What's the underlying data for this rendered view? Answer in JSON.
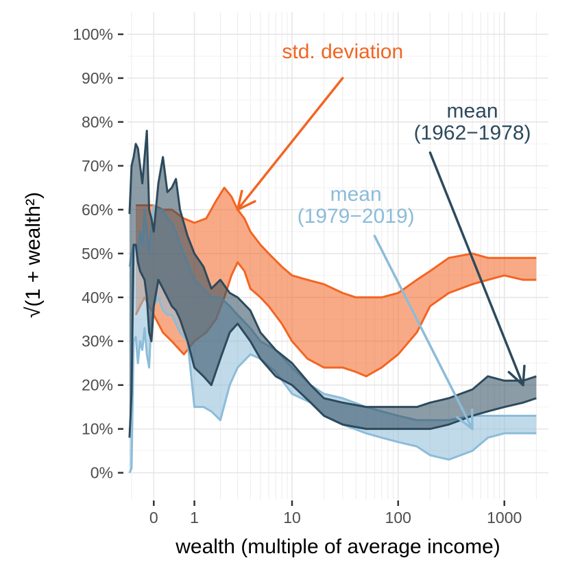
{
  "chart_data": {
    "type": "area",
    "title": "",
    "xlabel": "wealth (multiple of average income)",
    "ylabel": "√(1 + wealth²)",
    "x_scale": "asinh",
    "x_ticks": [
      0,
      1,
      10,
      100,
      1000
    ],
    "x_tick_labels": [
      "0",
      "1",
      "10",
      "100",
      "1000"
    ],
    "xlim": [
      -0.6,
      2600
    ],
    "y_ticks": [
      0,
      10,
      20,
      30,
      40,
      50,
      60,
      70,
      80,
      90,
      100
    ],
    "y_tick_labels": [
      "0%",
      "10%",
      "20%",
      "30%",
      "40%",
      "50%",
      "60%",
      "70%",
      "80%",
      "90%",
      "100%"
    ],
    "ylim": [
      -6,
      105
    ],
    "grid": true,
    "legend": "none",
    "series": [
      {
        "color": "#f26522",
        "x": [
          -0.4,
          -0.3,
          -0.2,
          -0.1,
          0.0,
          0.2,
          0.4,
          0.7,
          1.0,
          1.4,
          1.8,
          2.2,
          2.6,
          3.0,
          3.5,
          4.0,
          5.0,
          6.0,
          8.0,
          10,
          14,
          20,
          30,
          40,
          50,
          70,
          100,
          150,
          200,
          300,
          500,
          700,
          1000,
          1500,
          2000
        ],
        "lower": [
          36,
          38,
          40,
          38,
          36,
          32,
          30,
          27,
          30,
          32,
          35,
          40,
          45,
          48,
          46,
          42,
          40,
          38,
          34,
          30,
          26,
          24,
          24,
          23,
          22,
          24,
          27,
          32,
          38,
          41,
          43,
          44,
          45,
          44,
          44
        ],
        "upper": [
          61,
          61,
          61,
          61,
          61,
          60,
          60,
          58,
          57,
          58,
          62,
          65,
          63,
          60,
          58,
          55,
          52,
          50,
          47,
          45,
          44,
          43,
          41,
          40,
          40,
          40,
          41,
          44,
          46,
          49,
          50,
          49,
          49,
          49,
          49
        ]
      },
      {
        "color": "#8cbcd8",
        "x": [
          -0.55,
          -0.5,
          -0.45,
          -0.4,
          -0.35,
          -0.3,
          -0.25,
          -0.2,
          -0.15,
          -0.1,
          -0.05,
          0.0,
          0.1,
          0.2,
          0.3,
          0.4,
          0.5,
          0.6,
          0.8,
          1.0,
          1.3,
          1.6,
          2.0,
          2.5,
          3.0,
          4.0,
          5.0,
          7.0,
          10,
          15,
          20,
          30,
          50,
          70,
          100,
          150,
          200,
          300,
          500,
          700,
          1000,
          1500,
          2000
        ],
        "lower": [
          0,
          1,
          30,
          31,
          25,
          30,
          28,
          33,
          27,
          24,
          35,
          38,
          40,
          37,
          36,
          36,
          34,
          32,
          30,
          15,
          15,
          14,
          12,
          20,
          24,
          27,
          26,
          23,
          18,
          16,
          13,
          11,
          9,
          8,
          7,
          6,
          4,
          3,
          5,
          8,
          9,
          9,
          9
        ],
        "upper": [
          47,
          50,
          52,
          52,
          50,
          55,
          52,
          60,
          55,
          50,
          56,
          61,
          60,
          60,
          58,
          57,
          55,
          52,
          48,
          44,
          42,
          40,
          40,
          38,
          36,
          33,
          30,
          28,
          24,
          20,
          18,
          17,
          15,
          14,
          13,
          12,
          12,
          12,
          13,
          13,
          13,
          13,
          13
        ]
      },
      {
        "color": "#2d4a5c",
        "x": [
          -0.55,
          -0.5,
          -0.45,
          -0.4,
          -0.35,
          -0.3,
          -0.25,
          -0.2,
          -0.15,
          -0.1,
          -0.05,
          0.0,
          0.1,
          0.2,
          0.3,
          0.4,
          0.5,
          0.6,
          0.8,
          1.0,
          1.3,
          1.6,
          2.0,
          2.5,
          3.0,
          4.0,
          5.0,
          7.0,
          10,
          15,
          20,
          30,
          50,
          70,
          100,
          150,
          200,
          300,
          500,
          700,
          1000,
          1500,
          2000
        ],
        "lower": [
          8,
          18,
          52,
          52,
          48,
          46,
          45,
          44,
          40,
          32,
          30,
          38,
          44,
          42,
          40,
          38,
          37,
          35,
          30,
          24,
          22,
          20,
          26,
          32,
          34,
          30,
          26,
          22,
          20,
          16,
          13,
          11,
          10,
          10,
          10,
          10,
          10,
          11,
          13,
          14,
          15,
          16,
          17
        ],
        "upper": [
          59,
          70,
          72,
          75,
          74,
          70,
          66,
          72,
          78,
          60,
          58,
          55,
          66,
          72,
          64,
          65,
          67,
          60,
          54,
          50,
          47,
          42,
          44,
          41,
          40,
          37,
          32,
          28,
          25,
          20,
          17,
          16,
          15,
          15,
          15,
          15,
          16,
          17,
          19,
          22,
          21,
          21,
          22
        ]
      }
    ],
    "annotations": [
      {
        "text": "std. deviation",
        "color": "#f26522",
        "x": 30,
        "y": 94.5,
        "arrow_from": [
          30,
          90
        ],
        "arrow_to": [
          3,
          60
        ]
      },
      {
        "text": "mean",
        "color": "#2d4a5c",
        "x": 500,
        "y": 81,
        "arrow_from": [
          200,
          73
        ],
        "arrow_to": [
          1500,
          20
        ]
      },
      {
        "text": "(1962−1978)",
        "color": "#2d4a5c",
        "x": 500,
        "y": 76
      },
      {
        "text": "mean",
        "color": "#8cbcd8",
        "x": 40,
        "y": 62,
        "arrow_from": [
          60,
          54
        ],
        "arrow_to": [
          500,
          10
        ]
      },
      {
        "text": "(1979−2019)",
        "color": "#8cbcd8",
        "x": 40,
        "y": 57
      }
    ]
  }
}
